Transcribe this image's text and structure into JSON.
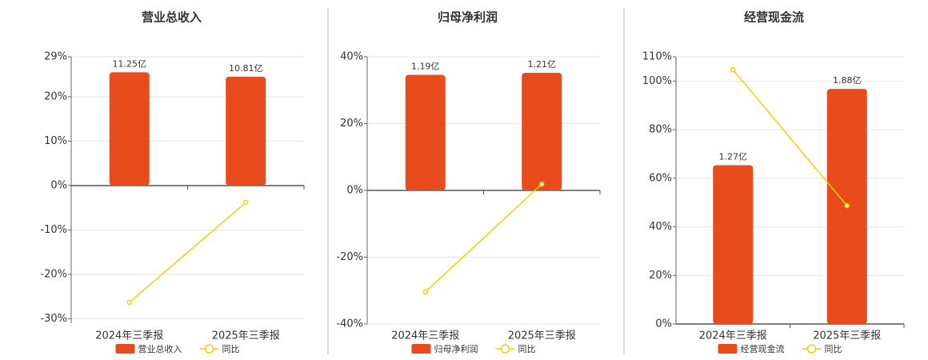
{
  "chart_data": [
    {
      "type": "bar",
      "title": "营业总收入",
      "categories": [
        "2024年三季报",
        "2025年三季报"
      ],
      "series": [
        {
          "name": "营业总收入",
          "color": "#e84c1d",
          "values": [
            11.25,
            10.81
          ],
          "value_labels": [
            "11.25亿",
            "10.81亿"
          ]
        },
        {
          "name": "同比",
          "type": "line",
          "color": "#f2d000",
          "values": [
            -26.3,
            -3.8
          ]
        }
      ],
      "ylim": [
        -31,
        29
      ],
      "yticks": [
        {
          "value": -30,
          "label": "-30%"
        },
        {
          "value": -20,
          "label": "-20%"
        },
        {
          "value": -10,
          "label": "-10%"
        },
        {
          "value": 0,
          "label": "0%"
        },
        {
          "value": 10,
          "label": "10%"
        },
        {
          "value": 20,
          "label": "20%"
        },
        {
          "value": 29,
          "label": "29%"
        }
      ],
      "grid": true
    },
    {
      "type": "bar",
      "title": "归母净利润",
      "categories": [
        "2024年三季报",
        "2025年三季报"
      ],
      "series": [
        {
          "name": "归母净利润",
          "color": "#e84c1d",
          "values": [
            1.19,
            1.21
          ],
          "value_labels": [
            "1.19亿",
            "1.21亿"
          ]
        },
        {
          "name": "同比",
          "type": "line",
          "color": "#f2d000",
          "values": [
            -30.4,
            1.9
          ]
        }
      ],
      "ylim": [
        -40,
        40
      ],
      "yticks": [
        {
          "value": -40,
          "label": "-40%"
        },
        {
          "value": -20,
          "label": "-20%"
        },
        {
          "value": 0,
          "label": "0%"
        },
        {
          "value": 20,
          "label": "20%"
        },
        {
          "value": 40,
          "label": "40%"
        }
      ],
      "grid": true
    },
    {
      "type": "bar",
      "title": "经营现金流",
      "categories": [
        "2024年三季报",
        "2025年三季报"
      ],
      "series": [
        {
          "name": "经营现金流",
          "color": "#e84c1d",
          "values": [
            1.27,
            1.88
          ],
          "value_labels": [
            "1.27亿",
            "1.88亿"
          ]
        },
        {
          "name": "同比",
          "type": "line",
          "color": "#f2d000",
          "values": [
            104.7,
            48.7
          ]
        }
      ],
      "ylim": [
        0,
        110
      ],
      "yticks": [
        {
          "value": 0,
          "label": "0%"
        },
        {
          "value": 20,
          "label": "20%"
        },
        {
          "value": 40,
          "label": "40%"
        },
        {
          "value": 60,
          "label": "60%"
        },
        {
          "value": 80,
          "label": "80%"
        },
        {
          "value": 100,
          "label": "100%"
        },
        {
          "value": 110,
          "label": "110%"
        }
      ],
      "grid": true
    }
  ]
}
